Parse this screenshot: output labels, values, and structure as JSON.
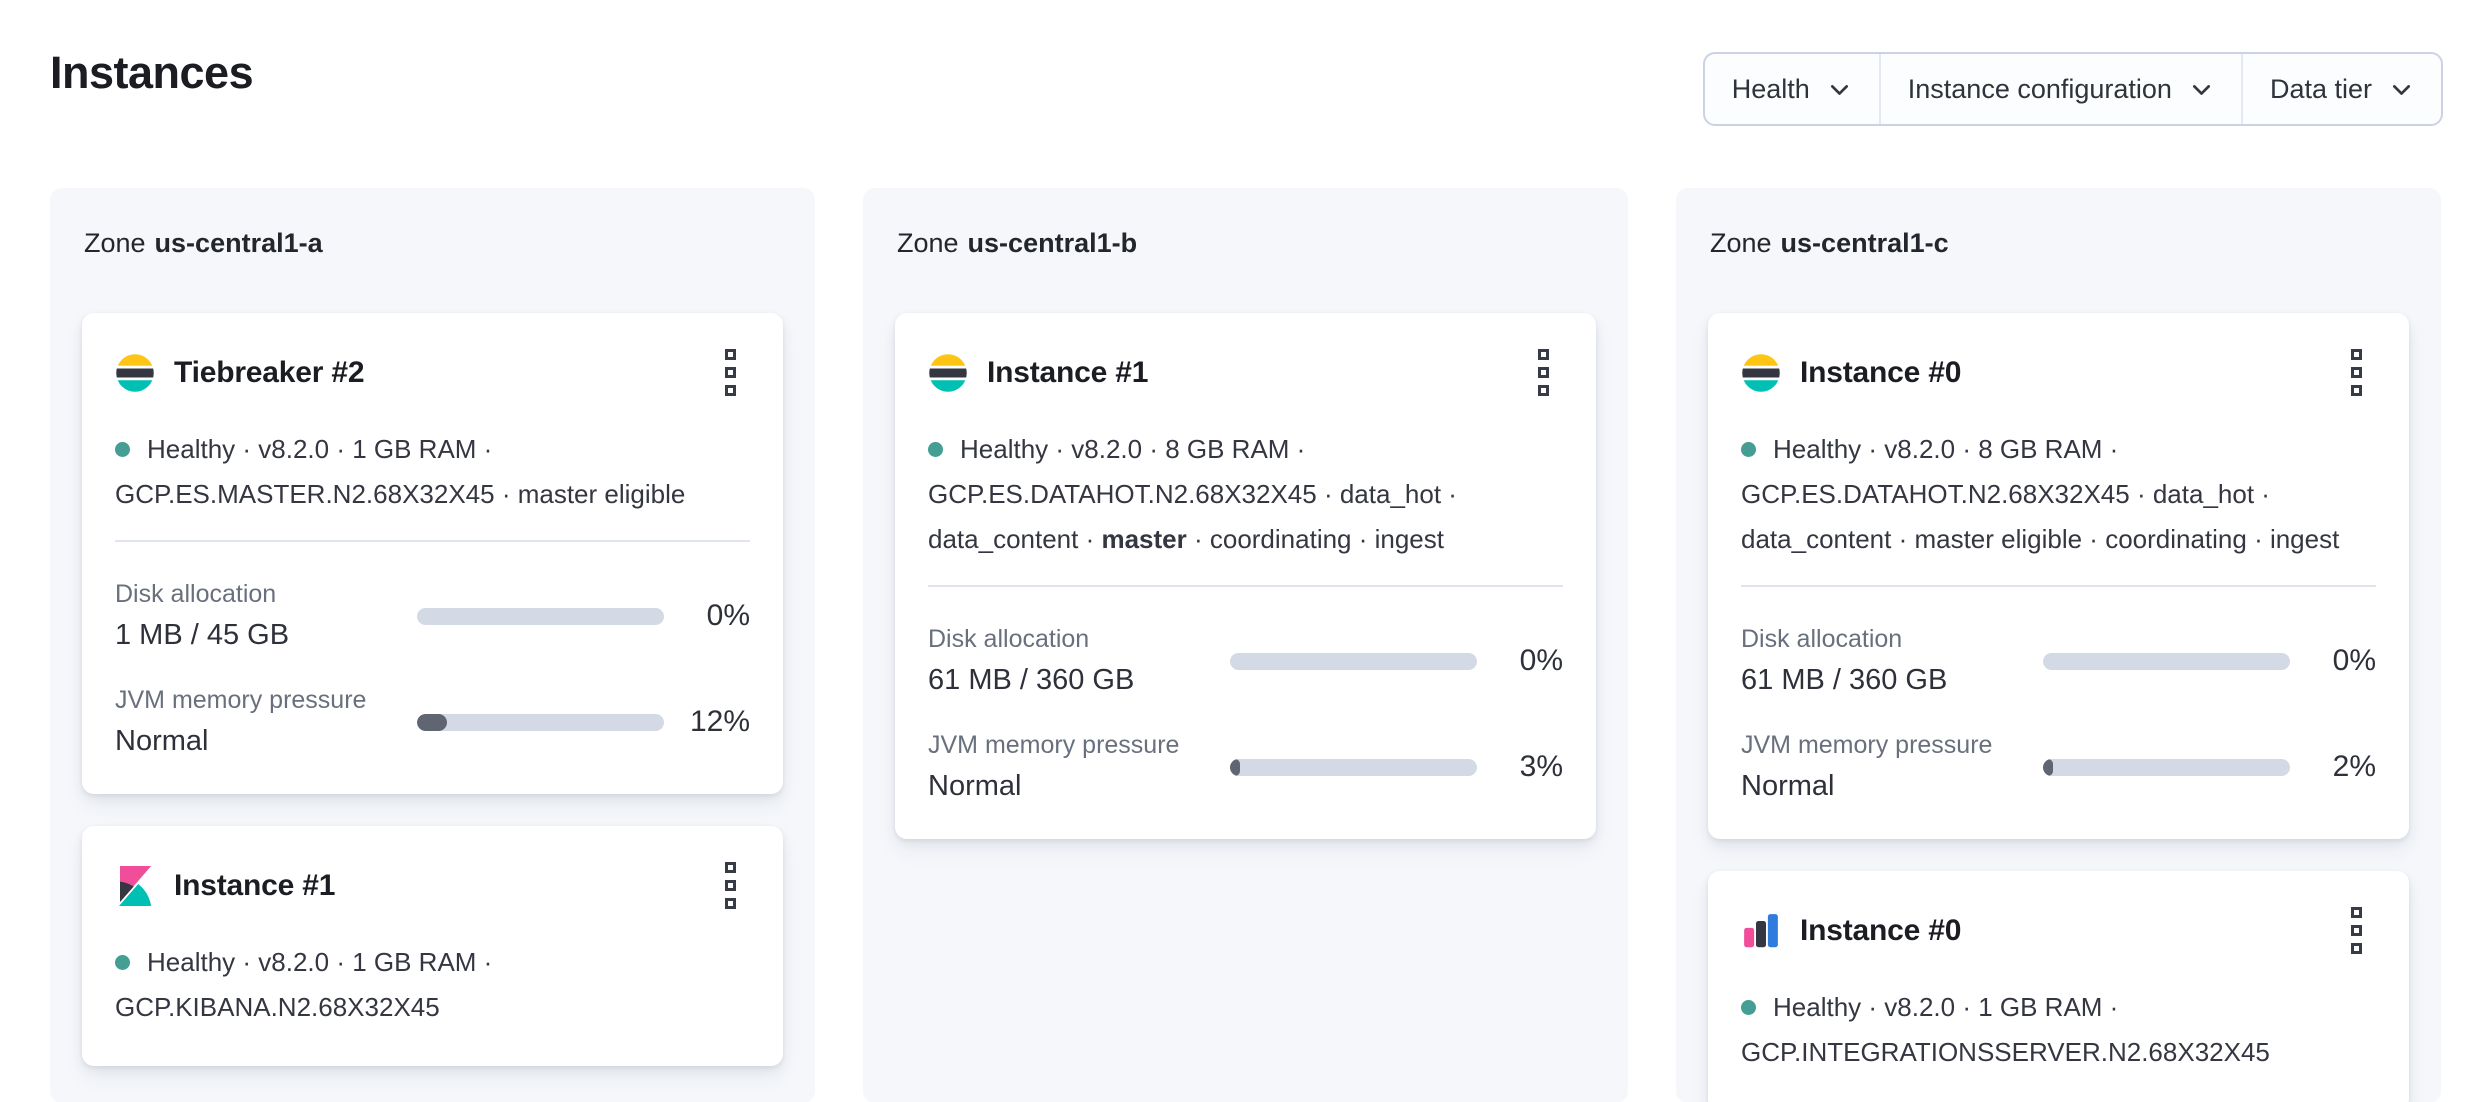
{
  "page": {
    "title": "Instances"
  },
  "filters": [
    {
      "label": "Health"
    },
    {
      "label": "Instance configuration"
    },
    {
      "label": "Data tier"
    }
  ],
  "colors": {
    "healthy_dot": "#459e93",
    "bar_track": "#d3dae6",
    "bar_fill": "#5f6671",
    "zone_panel_bg": "#f5f7fb",
    "elastic_yellow": "#fec514",
    "elastic_dark": "#343741",
    "elastic_teal": "#00bfb3",
    "kibana_pink": "#f04e98",
    "integrations_blue": "#2f7cde"
  },
  "zones": [
    {
      "label_prefix": "Zone",
      "name": "us-central1-a",
      "cards": [
        {
          "icon": "elasticsearch-logo",
          "title": "Tiebreaker #2",
          "status_line": "Healthy · v8.2.0 · 1 GB RAM ·",
          "config_line": "GCP.ES.MASTER.N2.68X32X45 · master eligible",
          "metrics": [
            {
              "label": "Disk allocation",
              "value": "1 MB / 45 GB",
              "percent": "0%",
              "fill_pct": 0
            },
            {
              "label": "JVM memory pressure",
              "value": "Normal",
              "percent": "12%",
              "fill_pct": 12
            }
          ]
        },
        {
          "icon": "kibana-logo",
          "title": "Instance #1",
          "status_line": "Healthy · v8.2.0 · 1 GB RAM ·",
          "config_line": "GCP.KIBANA.N2.68X32X45"
        }
      ]
    },
    {
      "label_prefix": "Zone",
      "name": "us-central1-b",
      "cards": [
        {
          "icon": "elasticsearch-logo",
          "title": "Instance #1",
          "status_line": "Healthy · v8.2.0 · 8 GB RAM ·",
          "config_line": "GCP.ES.DATAHOT.N2.68X32X45 · data_hot ·",
          "roles_pre": "data_content · ",
          "roles_bold": "master",
          "roles_post": " · coordinating · ingest",
          "metrics": [
            {
              "label": "Disk allocation",
              "value": "61 MB / 360 GB",
              "percent": "0%",
              "fill_pct": 0
            },
            {
              "label": "JVM memory pressure",
              "value": "Normal",
              "percent": "3%",
              "fill_pct": 3
            }
          ]
        }
      ]
    },
    {
      "label_prefix": "Zone",
      "name": "us-central1-c",
      "cards": [
        {
          "icon": "elasticsearch-logo",
          "title": "Instance #0",
          "status_line": "Healthy · v8.2.0 · 8 GB RAM ·",
          "config_line": "GCP.ES.DATAHOT.N2.68X32X45 · data_hot ·",
          "roles_pre": "data_content · master eligible · coordinating · ingest",
          "roles_bold": "",
          "roles_post": "",
          "metrics": [
            {
              "label": "Disk allocation",
              "value": "61 MB / 360 GB",
              "percent": "0%",
              "fill_pct": 0
            },
            {
              "label": "JVM memory pressure",
              "value": "Normal",
              "percent": "2%",
              "fill_pct": 2
            }
          ]
        },
        {
          "icon": "integrations-server-logo",
          "title": "Instance #0",
          "status_line": "Healthy · v8.2.0 · 1 GB RAM ·",
          "config_line": "GCP.INTEGRATIONSSERVER.N2.68X32X45"
        }
      ]
    }
  ]
}
